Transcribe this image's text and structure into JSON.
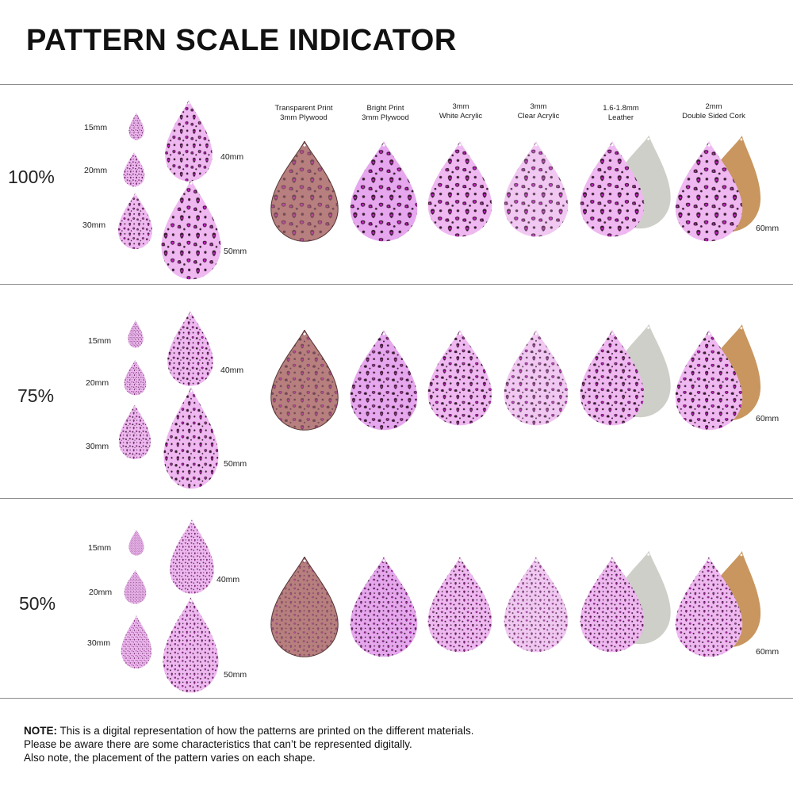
{
  "title": "PATTERN SCALE INDICATOR",
  "materials": [
    {
      "line1": "Transparent Print",
      "line2": "3mm Plywood",
      "style": "plywood"
    },
    {
      "line1": "Bright Print",
      "line2": "3mm Plywood",
      "style": "bright"
    },
    {
      "line1": "3mm",
      "line2": "White Acrylic",
      "style": "white"
    },
    {
      "line1": "3mm",
      "line2": "Clear Acrylic",
      "style": "clear"
    },
    {
      "line1": "1.6-1.8mm",
      "line2": "Leather",
      "style": "leather"
    },
    {
      "line1": "2mm",
      "line2": "Double Sided Cork",
      "style": "cork"
    }
  ],
  "sections": [
    {
      "percent": "100%",
      "s15": "15mm",
      "s20": "20mm",
      "s30": "30mm",
      "s40": "40mm",
      "s50": "50mm",
      "s60": "60mm"
    },
    {
      "percent": "75%",
      "s15": "15mm",
      "s20": "20mm",
      "s30": "30mm",
      "s40": "40mm",
      "s50": "50mm",
      "s60": "60mm"
    },
    {
      "percent": "50%",
      "s15": "15mm",
      "s20": "20mm",
      "s30": "30mm",
      "s40": "40mm",
      "s50": "50mm",
      "s60": "60mm"
    }
  ],
  "note": {
    "bold": "NOTE:",
    "line1": " This is a digital representation of how the patterns are printed on the different materials.",
    "line2": "Please be aware there are some characteristics that can’t be represented digitally.",
    "line3": "Also note, the placement of the pattern varies on each shape."
  },
  "colors": {
    "pink": "#efb8f1",
    "magenta": "#d21fd0",
    "spot": "#3a1c30",
    "plywood": "#b77f7e",
    "leatherBack": "#cfcfc9",
    "corkBack": "#c8965e",
    "rule": "#8c8c8c"
  }
}
